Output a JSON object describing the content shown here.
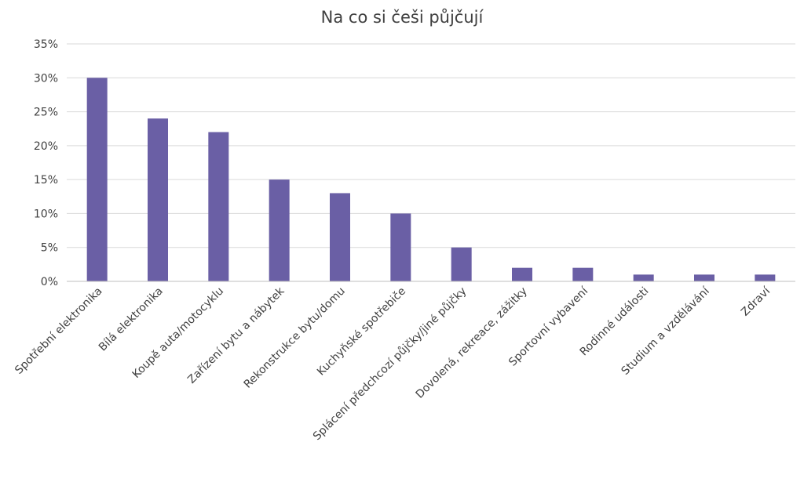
{
  "chart_data": {
    "type": "bar",
    "title": "Na co si češi půjčují",
    "categories": [
      "Spotřební elektronika",
      "Bílá elektronika",
      "Koupě auta/motocyklu",
      "Zařízení bytu a nábytek",
      "Rekonstrukce bytu/domu",
      "Kuchyňské spotřebiče",
      "Splácení předchcozí půjčky/jiné půjčky",
      "Dovolená, rekreace, zážitky",
      "Sportovní vybavení",
      "Rodinné události",
      "Studium a vzdělávání",
      "Zdraví"
    ],
    "values": [
      30,
      24,
      22,
      15,
      13,
      10,
      5,
      2,
      2,
      1,
      1,
      1
    ],
    "ylim": [
      0,
      35
    ],
    "yticks": [
      "0%",
      "5%",
      "10%",
      "15%",
      "20%",
      "25%",
      "30%",
      "35%"
    ],
    "grid": true,
    "legend": "none",
    "bar_color": "#6a5fa5"
  }
}
